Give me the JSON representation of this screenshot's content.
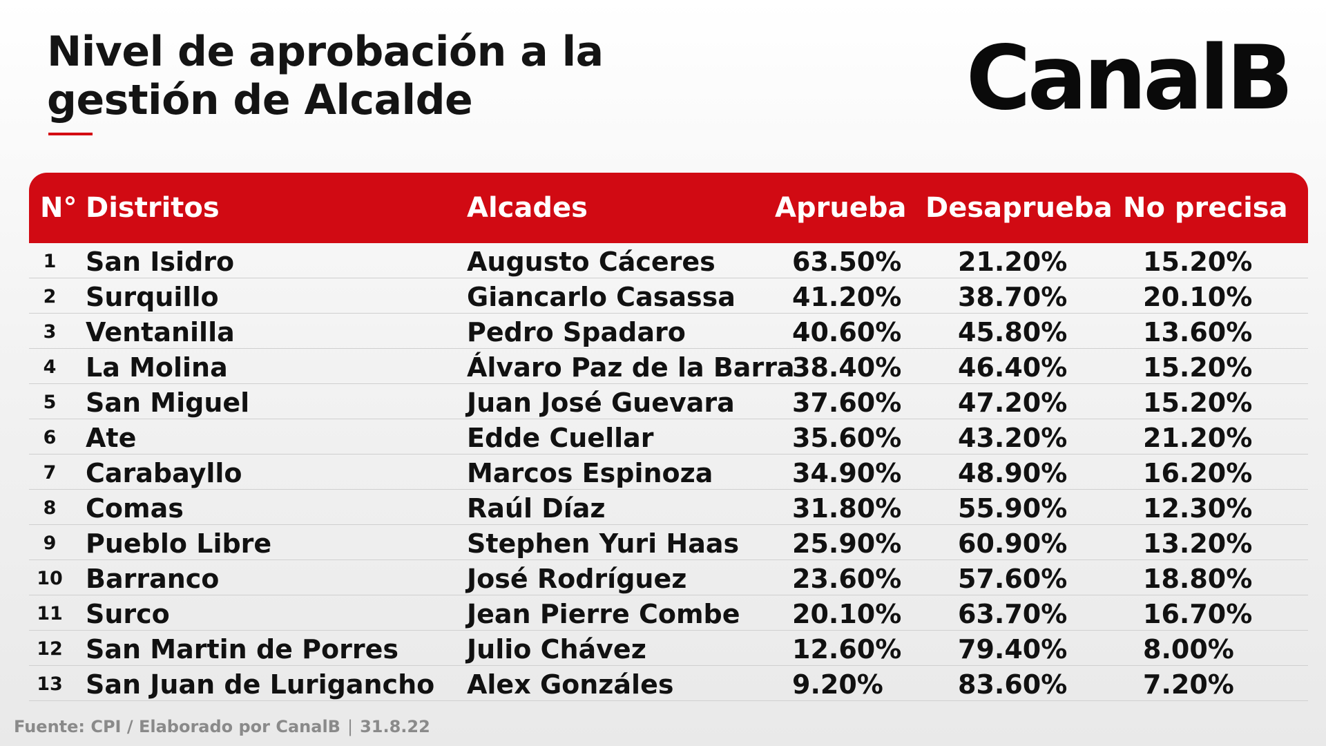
{
  "title": {
    "line1": "Nivel de aprobación a la",
    "line2": "gestión de Alcalde"
  },
  "logo": "CanalB",
  "colors": {
    "accent": "#d10a13",
    "header_text": "#ffffff",
    "body_text": "#111111"
  },
  "chart_data": {
    "type": "table",
    "columns": [
      "N°",
      "Distritos",
      "Alcades",
      "Aprueba",
      "Desaprueba",
      "No precisa"
    ],
    "rows": [
      [
        "1",
        "San Isidro",
        "Augusto Cáceres",
        "63.50%",
        "21.20%",
        "15.20%"
      ],
      [
        "2",
        "Surquillo",
        "Giancarlo Casassa",
        "41.20%",
        "38.70%",
        "20.10%"
      ],
      [
        "3",
        "Ventanilla",
        "Pedro Spadaro",
        "40.60%",
        "45.80%",
        "13.60%"
      ],
      [
        "4",
        "La Molina",
        "Álvaro Paz de la Barra",
        "38.40%",
        "46.40%",
        "15.20%"
      ],
      [
        "5",
        "San Miguel",
        "Juan José Guevara",
        "37.60%",
        "47.20%",
        "15.20%"
      ],
      [
        "6",
        "Ate",
        "Edde Cuellar",
        "35.60%",
        "43.20%",
        "21.20%"
      ],
      [
        "7",
        "Carabayllo",
        "Marcos Espinoza",
        "34.90%",
        "48.90%",
        "16.20%"
      ],
      [
        "8",
        "Comas",
        "Raúl Díaz",
        "31.80%",
        "55.90%",
        "12.30%"
      ],
      [
        "9",
        "Pueblo Libre",
        "Stephen Yuri Haas",
        "25.90%",
        "60.90%",
        "13.20%"
      ],
      [
        "10",
        "Barranco",
        "José Rodríguez",
        "23.60%",
        "57.60%",
        "18.80%"
      ],
      [
        "11",
        "Surco",
        "Jean Pierre Combe",
        "20.10%",
        "63.70%",
        "16.70%"
      ],
      [
        "12",
        "San Martin de Porres",
        "Julio Chávez",
        "12.60%",
        "79.40%",
        "8.00%"
      ],
      [
        "13",
        "San Juan de Lurigancho",
        "Alex Gonzáles",
        "9.20%",
        "83.60%",
        "7.20%"
      ]
    ]
  },
  "footer": {
    "source": "Fuente: CPI / Elaborado por CanalB",
    "separator": "|",
    "date": "31.8.22"
  }
}
